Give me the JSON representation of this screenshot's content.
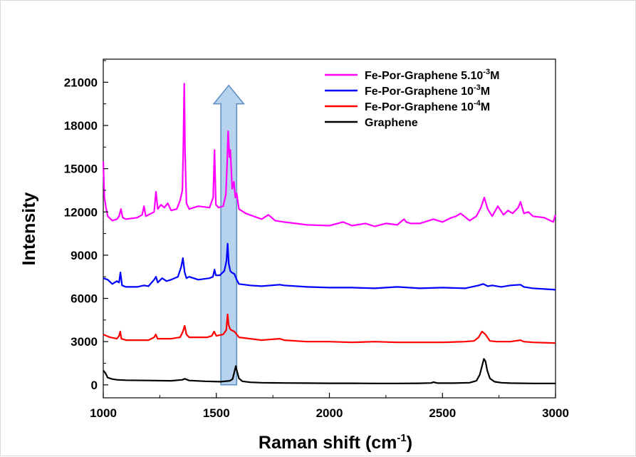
{
  "chart_data": {
    "type": "line",
    "xlabel": "Raman shift (cm",
    "xlabel_sup": "-1",
    "xlabel_end": ")",
    "ylabel": "Intensity",
    "xlim": [
      1000,
      3000
    ],
    "ylim": [
      -900,
      22600
    ],
    "x_ticks": [
      1000,
      1500,
      2000,
      2500,
      3000
    ],
    "x_tick_labels": [
      "1000",
      "1500",
      "2000",
      "2500",
      "3000"
    ],
    "y_ticks": [
      0,
      3000,
      6000,
      9000,
      12000,
      15000,
      18000,
      21000
    ],
    "y_tick_labels": [
      "0",
      "3000",
      "6000",
      "9000",
      "12000",
      "15000",
      "18000",
      "21000"
    ],
    "grid": false,
    "legend_position": "top-right",
    "annotation": {
      "type": "arrow",
      "description": "upward arrow over the ~1550 cm-1 band",
      "x_range": [
        1520,
        1590
      ],
      "y_range": [
        0,
        19500
      ],
      "color": "#9dc3e6"
    },
    "series": [
      {
        "name": "Fe-Por-Graphene 5.10",
        "name_sup": "-3",
        "name_end": "M",
        "color": "#ff00ff",
        "x": [
          1000,
          1005,
          1012,
          1020,
          1040,
          1060,
          1070,
          1078,
          1086,
          1100,
          1150,
          1172,
          1180,
          1188,
          1200,
          1225,
          1233,
          1241,
          1255,
          1270,
          1285,
          1300,
          1325,
          1340,
          1350,
          1354,
          1358,
          1362,
          1368,
          1380,
          1420,
          1470,
          1486,
          1492,
          1498,
          1510,
          1530,
          1542,
          1548,
          1552,
          1558,
          1562,
          1566,
          1570,
          1578,
          1584,
          1590,
          1600,
          1630,
          1700,
          1730,
          1760,
          1800,
          1900,
          2000,
          2060,
          2100,
          2160,
          2200,
          2250,
          2300,
          2330,
          2340,
          2360,
          2400,
          2460,
          2500,
          2540,
          2560,
          2580,
          2620,
          2650,
          2670,
          2685,
          2700,
          2720,
          2745,
          2770,
          2790,
          2810,
          2835,
          2845,
          2860,
          2880,
          2900,
          2950,
          2990,
          3000
        ],
        "y": [
          15500,
          13000,
          12300,
          11700,
          11400,
          11500,
          11700,
          12200,
          11600,
          11500,
          11600,
          11800,
          12400,
          11700,
          11800,
          12000,
          13400,
          12200,
          12500,
          12300,
          12600,
          12100,
          12200,
          12800,
          13500,
          16500,
          20900,
          16000,
          12600,
          12200,
          12400,
          12300,
          13000,
          16300,
          12500,
          12300,
          12400,
          13200,
          15500,
          17600,
          15800,
          16300,
          15000,
          13600,
          14100,
          13000,
          13300,
          12200,
          11900,
          11500,
          11800,
          11400,
          11300,
          11100,
          11050,
          11300,
          11050,
          11200,
          11000,
          11200,
          11100,
          11500,
          11300,
          11200,
          11200,
          11500,
          11300,
          11600,
          11700,
          11900,
          11400,
          11700,
          12300,
          13000,
          12200,
          11700,
          12400,
          11800,
          12100,
          11900,
          12300,
          12700,
          11900,
          12000,
          11700,
          11600,
          11300,
          11800
        ]
      },
      {
        "name": "Fe-Por-Graphene 10",
        "name_sup": "-3",
        "name_end": "M",
        "color": "#0000ff",
        "x": [
          1000,
          1020,
          1040,
          1060,
          1070,
          1076,
          1083,
          1100,
          1150,
          1180,
          1200,
          1225,
          1233,
          1241,
          1260,
          1280,
          1300,
          1330,
          1345,
          1352,
          1360,
          1368,
          1380,
          1420,
          1470,
          1485,
          1492,
          1498,
          1515,
          1535,
          1545,
          1550,
          1555,
          1562,
          1568,
          1580,
          1590,
          1600,
          1650,
          1700,
          1780,
          1800,
          1900,
          2000,
          2100,
          2200,
          2300,
          2400,
          2500,
          2600,
          2660,
          2680,
          2700,
          2720,
          2760,
          2800,
          2845,
          2860,
          2900,
          2950,
          3000
        ],
        "y": [
          7400,
          7300,
          7000,
          7200,
          7100,
          7800,
          6900,
          6800,
          6800,
          6900,
          6850,
          7300,
          7500,
          7100,
          7400,
          7200,
          7300,
          7500,
          8200,
          8800,
          7800,
          7400,
          7500,
          7300,
          7400,
          7500,
          8000,
          7600,
          7600,
          7900,
          8600,
          9800,
          8400,
          7900,
          7800,
          7700,
          7300,
          7000,
          6900,
          6850,
          6950,
          6900,
          6800,
          6750,
          6750,
          6700,
          6800,
          6700,
          6750,
          6700,
          6900,
          7000,
          6850,
          6900,
          6800,
          6900,
          6950,
          6800,
          6700,
          6650,
          6600
        ]
      },
      {
        "name": "Fe-Por-Graphene 10",
        "name_sup": "-4",
        "name_end": "M",
        "color": "#ff0000",
        "x": [
          1000,
          1030,
          1060,
          1070,
          1075,
          1080,
          1100,
          1200,
          1225,
          1232,
          1240,
          1300,
          1340,
          1352,
          1360,
          1368,
          1380,
          1460,
          1480,
          1490,
          1500,
          1530,
          1544,
          1550,
          1554,
          1560,
          1566,
          1580,
          1600,
          1700,
          1780,
          1800,
          1900,
          2000,
          2100,
          2200,
          2300,
          2400,
          2500,
          2600,
          2640,
          2660,
          2675,
          2690,
          2710,
          2740,
          2800,
          2845,
          2860,
          2900,
          3000
        ],
        "y": [
          3500,
          3300,
          3200,
          3400,
          3700,
          3200,
          3100,
          3100,
          3300,
          3500,
          3200,
          3200,
          3300,
          3700,
          4100,
          3500,
          3300,
          3300,
          3400,
          3700,
          3400,
          3500,
          3800,
          4900,
          4200,
          3900,
          3800,
          3700,
          3300,
          3100,
          3200,
          3100,
          3000,
          3000,
          2950,
          3000,
          2950,
          2950,
          2950,
          3000,
          3050,
          3300,
          3700,
          3500,
          3050,
          3000,
          3000,
          3100,
          3000,
          2950,
          2900
        ]
      },
      {
        "name": "Graphene",
        "color": "#000000",
        "x": [
          1000,
          1010,
          1020,
          1040,
          1060,
          1100,
          1200,
          1300,
          1350,
          1360,
          1380,
          1450,
          1520,
          1560,
          1572,
          1580,
          1586,
          1592,
          1600,
          1615,
          1650,
          1700,
          1800,
          1900,
          2000,
          2100,
          2200,
          2300,
          2400,
          2450,
          2460,
          2480,
          2550,
          2620,
          2650,
          2665,
          2675,
          2683,
          2690,
          2698,
          2710,
          2730,
          2760,
          2800,
          2900,
          3000
        ],
        "y": [
          1000,
          800,
          500,
          400,
          350,
          320,
          300,
          280,
          350,
          420,
          300,
          250,
          220,
          280,
          400,
          900,
          1300,
          900,
          450,
          250,
          180,
          150,
          130,
          120,
          110,
          110,
          100,
          100,
          110,
          130,
          190,
          120,
          120,
          150,
          280,
          700,
          1300,
          1800,
          1650,
          1000,
          450,
          220,
          150,
          120,
          100,
          100
        ]
      }
    ]
  }
}
